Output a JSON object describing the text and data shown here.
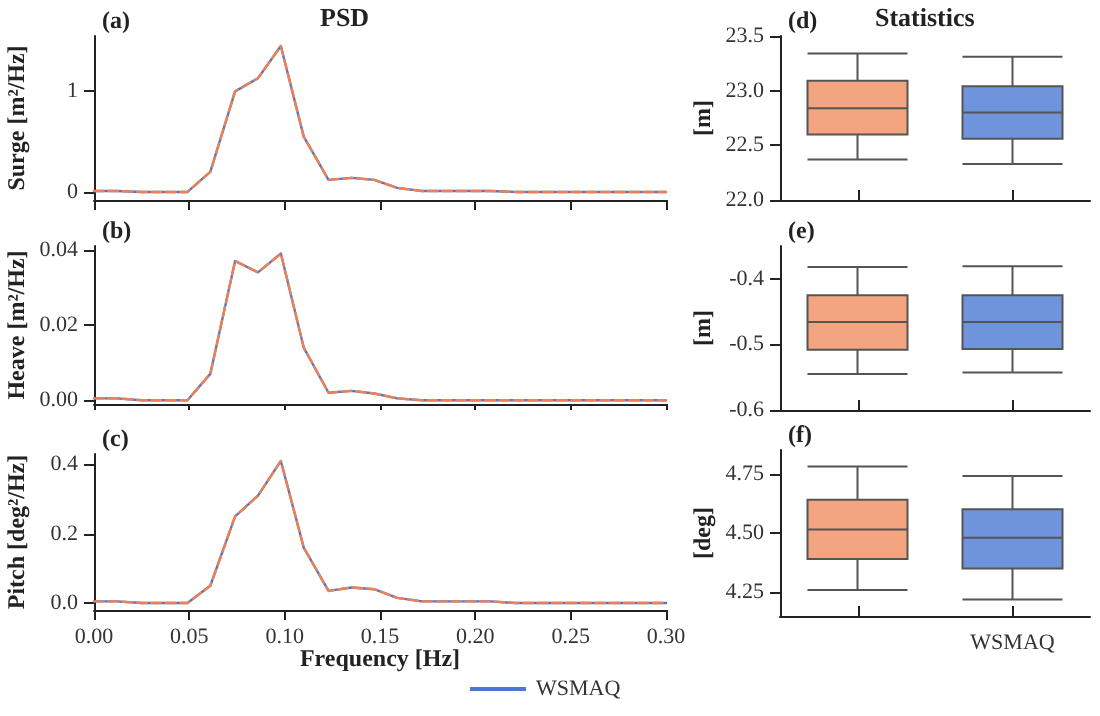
{
  "chart_data": [
    {
      "type": "line",
      "title": "PSD",
      "ylabel": "Surge [m²/Hz]",
      "annotations": [
        "(a)"
      ],
      "marker": "none",
      "tick_labels": "y",
      "xlim": [
        0,
        0.3
      ],
      "xticks": [
        {
          "value": 0,
          "label": null
        },
        {
          "value": 0.05,
          "label": null
        },
        {
          "value": 0.1,
          "label": null
        },
        {
          "value": 0.15,
          "label": null
        },
        {
          "value": 0.2,
          "label": null
        },
        {
          "value": 0.25,
          "label": null
        },
        {
          "value": 0.3,
          "label": null
        }
      ],
      "ylim": [
        -0.08,
        1.55
      ],
      "yticks": [
        0,
        1
      ],
      "x": [
        0,
        0.012,
        0.025,
        0.037,
        0.049,
        0.061,
        0.074,
        0.086,
        0.098,
        0.11,
        0.123,
        0.135,
        0.147,
        0.159,
        0.172,
        0.184,
        0.196,
        0.208,
        0.221,
        0.233,
        0.245,
        0.257,
        0.27,
        0.282,
        0.294,
        0.3
      ],
      "series": [
        {
          "color": "#4a78d0",
          "line_style": "solid",
          "values": [
            0.01,
            0.01,
            0,
            0,
            0,
            0.2,
            1.0,
            1.13,
            1.45,
            0.55,
            0.12,
            0.14,
            0.12,
            0.04,
            0.01,
            0.01,
            0.01,
            0.01,
            0,
            0,
            0,
            0,
            0,
            0,
            0,
            0
          ]
        },
        {
          "color": "#f08050",
          "line_style": "dashed",
          "values": [
            0.01,
            0.01,
            0,
            0,
            0,
            0.2,
            1.0,
            1.13,
            1.45,
            0.55,
            0.12,
            0.14,
            0.12,
            0.04,
            0.01,
            0.01,
            0.01,
            0.01,
            0,
            0,
            0,
            0,
            0,
            0,
            0,
            0
          ]
        }
      ]
    },
    {
      "type": "line",
      "ylabel": "Heave [m²/Hz]",
      "annotations": [
        "(b)"
      ],
      "marker": "none",
      "tick_labels": "y",
      "xlim": [
        0,
        0.3
      ],
      "xticks": [
        {
          "value": 0,
          "label": null
        },
        {
          "value": 0.05,
          "label": null
        },
        {
          "value": 0.1,
          "label": null
        },
        {
          "value": 0.15,
          "label": null
        },
        {
          "value": 0.2,
          "label": null
        },
        {
          "value": 0.25,
          "label": null
        },
        {
          "value": 0.3,
          "label": null
        }
      ],
      "ylim": [
        -0.001,
        0.041
      ],
      "yticks": [
        {
          "value": 0,
          "label": "0.00"
        },
        {
          "value": 0.02,
          "label": "0.02"
        },
        {
          "value": 0.04,
          "label": "0.04"
        }
      ],
      "x": [
        0,
        0.012,
        0.025,
        0.037,
        0.049,
        0.061,
        0.074,
        0.086,
        0.098,
        0.11,
        0.123,
        0.135,
        0.147,
        0.159,
        0.172,
        0.184,
        0.196,
        0.208,
        0.221,
        0.233,
        0.245,
        0.257,
        0.27,
        0.282,
        0.294,
        0.3
      ],
      "series": [
        {
          "color": "#4a78d0",
          "line_style": "solid",
          "values": [
            0.0005,
            0.0005,
            0,
            0,
            0,
            0.007,
            0.037,
            0.034,
            0.039,
            0.014,
            0.002,
            0.0025,
            0.0018,
            0.0005,
            0,
            0,
            0,
            0,
            0,
            0,
            0,
            0,
            0,
            0,
            0,
            0
          ]
        },
        {
          "color": "#f08050",
          "line_style": "dashed",
          "values": [
            0.0005,
            0.0005,
            0,
            0,
            0,
            0.007,
            0.037,
            0.034,
            0.039,
            0.014,
            0.002,
            0.0025,
            0.0018,
            0.0005,
            0,
            0,
            0,
            0,
            0,
            0,
            0,
            0,
            0,
            0,
            0,
            0
          ]
        }
      ]
    },
    {
      "type": "line",
      "ylabel": "Pitch [deg²/Hz]",
      "xlabel": "Frequency [Hz]",
      "annotations": [
        "(c)"
      ],
      "marker": "none",
      "legend": "bottom",
      "xlim": [
        0,
        0.3
      ],
      "xticks": [
        {
          "value": 0,
          "label": "0.00"
        },
        {
          "value": 0.05,
          "label": "0.05"
        },
        {
          "value": 0.1,
          "label": "0.10"
        },
        {
          "value": 0.15,
          "label": "0.15"
        },
        {
          "value": 0.2,
          "label": "0.20"
        },
        {
          "value": 0.25,
          "label": "0.25"
        },
        {
          "value": 0.3,
          "label": "0.30"
        }
      ],
      "ylim": [
        -0.02,
        0.43
      ],
      "yticks": [
        {
          "value": 0,
          "label": "0.0"
        },
        {
          "value": 0.2,
          "label": "0.2"
        },
        {
          "value": 0.4,
          "label": "0.4"
        }
      ],
      "x": [
        0,
        0.012,
        0.025,
        0.037,
        0.049,
        0.061,
        0.074,
        0.086,
        0.098,
        0.11,
        0.123,
        0.135,
        0.147,
        0.159,
        0.172,
        0.184,
        0.196,
        0.208,
        0.221,
        0.233,
        0.245,
        0.257,
        0.27,
        0.282,
        0.294,
        0.3
      ],
      "series": [
        {
          "name": "WSMAQ",
          "color": "#4a78d0",
          "line_style": "solid",
          "values": [
            0.005,
            0.005,
            0,
            0,
            0,
            0.05,
            0.25,
            0.31,
            0.41,
            0.16,
            0.035,
            0.045,
            0.04,
            0.015,
            0.005,
            0.005,
            0.005,
            0.005,
            0,
            0,
            0,
            0,
            0,
            0,
            0,
            0
          ]
        },
        {
          "color": "#f08050",
          "line_style": "dashed",
          "values": [
            0.005,
            0.005,
            0,
            0,
            0,
            0.05,
            0.25,
            0.31,
            0.41,
            0.16,
            0.035,
            0.045,
            0.04,
            0.015,
            0.005,
            0.005,
            0.005,
            0.005,
            0,
            0,
            0,
            0,
            0,
            0,
            0,
            0
          ]
        }
      ]
    },
    {
      "type": "box",
      "title": "Statistics",
      "ylabel": "[m]",
      "annotations": [
        "(d)"
      ],
      "tick_labels": "y",
      "categories": [
        null,
        null
      ],
      "colors": [
        "#f2a57e",
        "#7094dc"
      ],
      "ylim": [
        22,
        23.5
      ],
      "yticks": [
        {
          "value": 22,
          "label": "22.0"
        },
        {
          "value": 22.5,
          "label": "22.5"
        },
        {
          "value": 23,
          "label": "23.0"
        },
        {
          "value": 23.5,
          "label": "23.5"
        }
      ],
      "boxes": [
        {
          "low": 22.37,
          "q1": 22.6,
          "median": 22.84,
          "q3": 23.09,
          "high": 23.34
        },
        {
          "low": 22.33,
          "q1": 22.56,
          "median": 22.8,
          "q3": 23.04,
          "high": 23.31
        }
      ]
    },
    {
      "type": "box",
      "ylabel": "[m]",
      "annotations": [
        "(e)"
      ],
      "tick_labels": "y",
      "categories": [
        null,
        null
      ],
      "colors": [
        "#f2a57e",
        "#7094dc"
      ],
      "ylim": [
        -0.6,
        -0.35
      ],
      "yticks": [
        -0.6,
        -0.5,
        -0.4
      ],
      "boxes": [
        {
          "low": -0.545,
          "q1": -0.508,
          "median": -0.466,
          "q3": -0.425,
          "high": -0.382
        },
        {
          "low": -0.543,
          "q1": -0.507,
          "median": -0.466,
          "q3": -0.425,
          "high": -0.381
        }
      ]
    },
    {
      "type": "box",
      "ylabel": "[deg]",
      "annotations": [
        "(f)"
      ],
      "categories": [
        null,
        "WSMAQ"
      ],
      "colors": [
        "#f2a57e",
        "#7094dc"
      ],
      "ylim": [
        4.15,
        4.85
      ],
      "yticks": [
        {
          "value": 4.25,
          "label": "4.25"
        },
        {
          "value": 4.5,
          "label": "4.50"
        },
        {
          "value": 4.75,
          "label": "4.75"
        }
      ],
      "boxes": [
        {
          "low": 4.26,
          "q1": 4.39,
          "median": 4.515,
          "q3": 4.64,
          "high": 4.78
        },
        {
          "low": 4.22,
          "q1": 4.35,
          "median": 4.48,
          "q3": 4.6,
          "high": 4.74
        }
      ]
    }
  ]
}
